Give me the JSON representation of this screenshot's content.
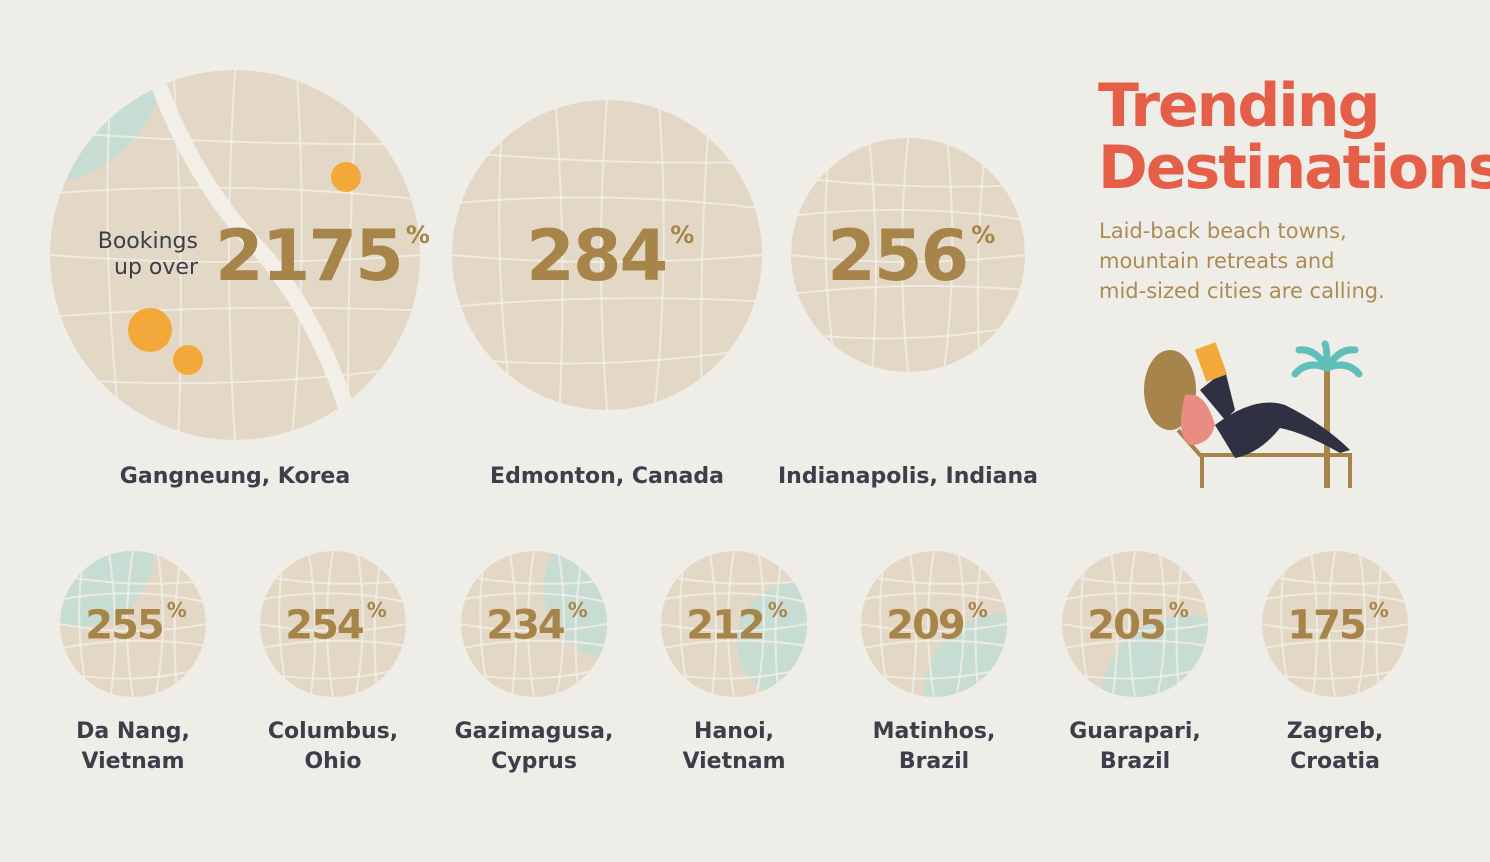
{
  "header": {
    "title": [
      "Trending",
      "Destinations"
    ],
    "subtitle": [
      "Laid-back beach towns,",
      "mountain retreats and",
      "mid-sized cities are calling."
    ]
  },
  "featured_lead": [
    "Bookings",
    "up over"
  ],
  "destinations": [
    {
      "name": [
        "Gangneung, Korea"
      ],
      "value": 2175,
      "unit": "%"
    },
    {
      "name": [
        "Edmonton, Canada"
      ],
      "value": 284,
      "unit": "%"
    },
    {
      "name": [
        "Indianapolis, Indiana"
      ],
      "value": 256,
      "unit": "%"
    },
    {
      "name": [
        "Da Nang,",
        "Vietnam"
      ],
      "value": 255,
      "unit": "%"
    },
    {
      "name": [
        "Columbus,",
        "Ohio"
      ],
      "value": 254,
      "unit": "%"
    },
    {
      "name": [
        "Gazimagusa,",
        "Cyprus"
      ],
      "value": 234,
      "unit": "%"
    },
    {
      "name": [
        "Hanoi,",
        "Vietnam"
      ],
      "value": 212,
      "unit": "%"
    },
    {
      "name": [
        "Matinhos,",
        "Brazil"
      ],
      "value": 209,
      "unit": "%"
    },
    {
      "name": [
        "Guarapari,",
        "Brazil"
      ],
      "value": 205,
      "unit": "%"
    },
    {
      "name": [
        "Zagreb,",
        "Croatia"
      ],
      "value": 175,
      "unit": "%"
    }
  ]
}
